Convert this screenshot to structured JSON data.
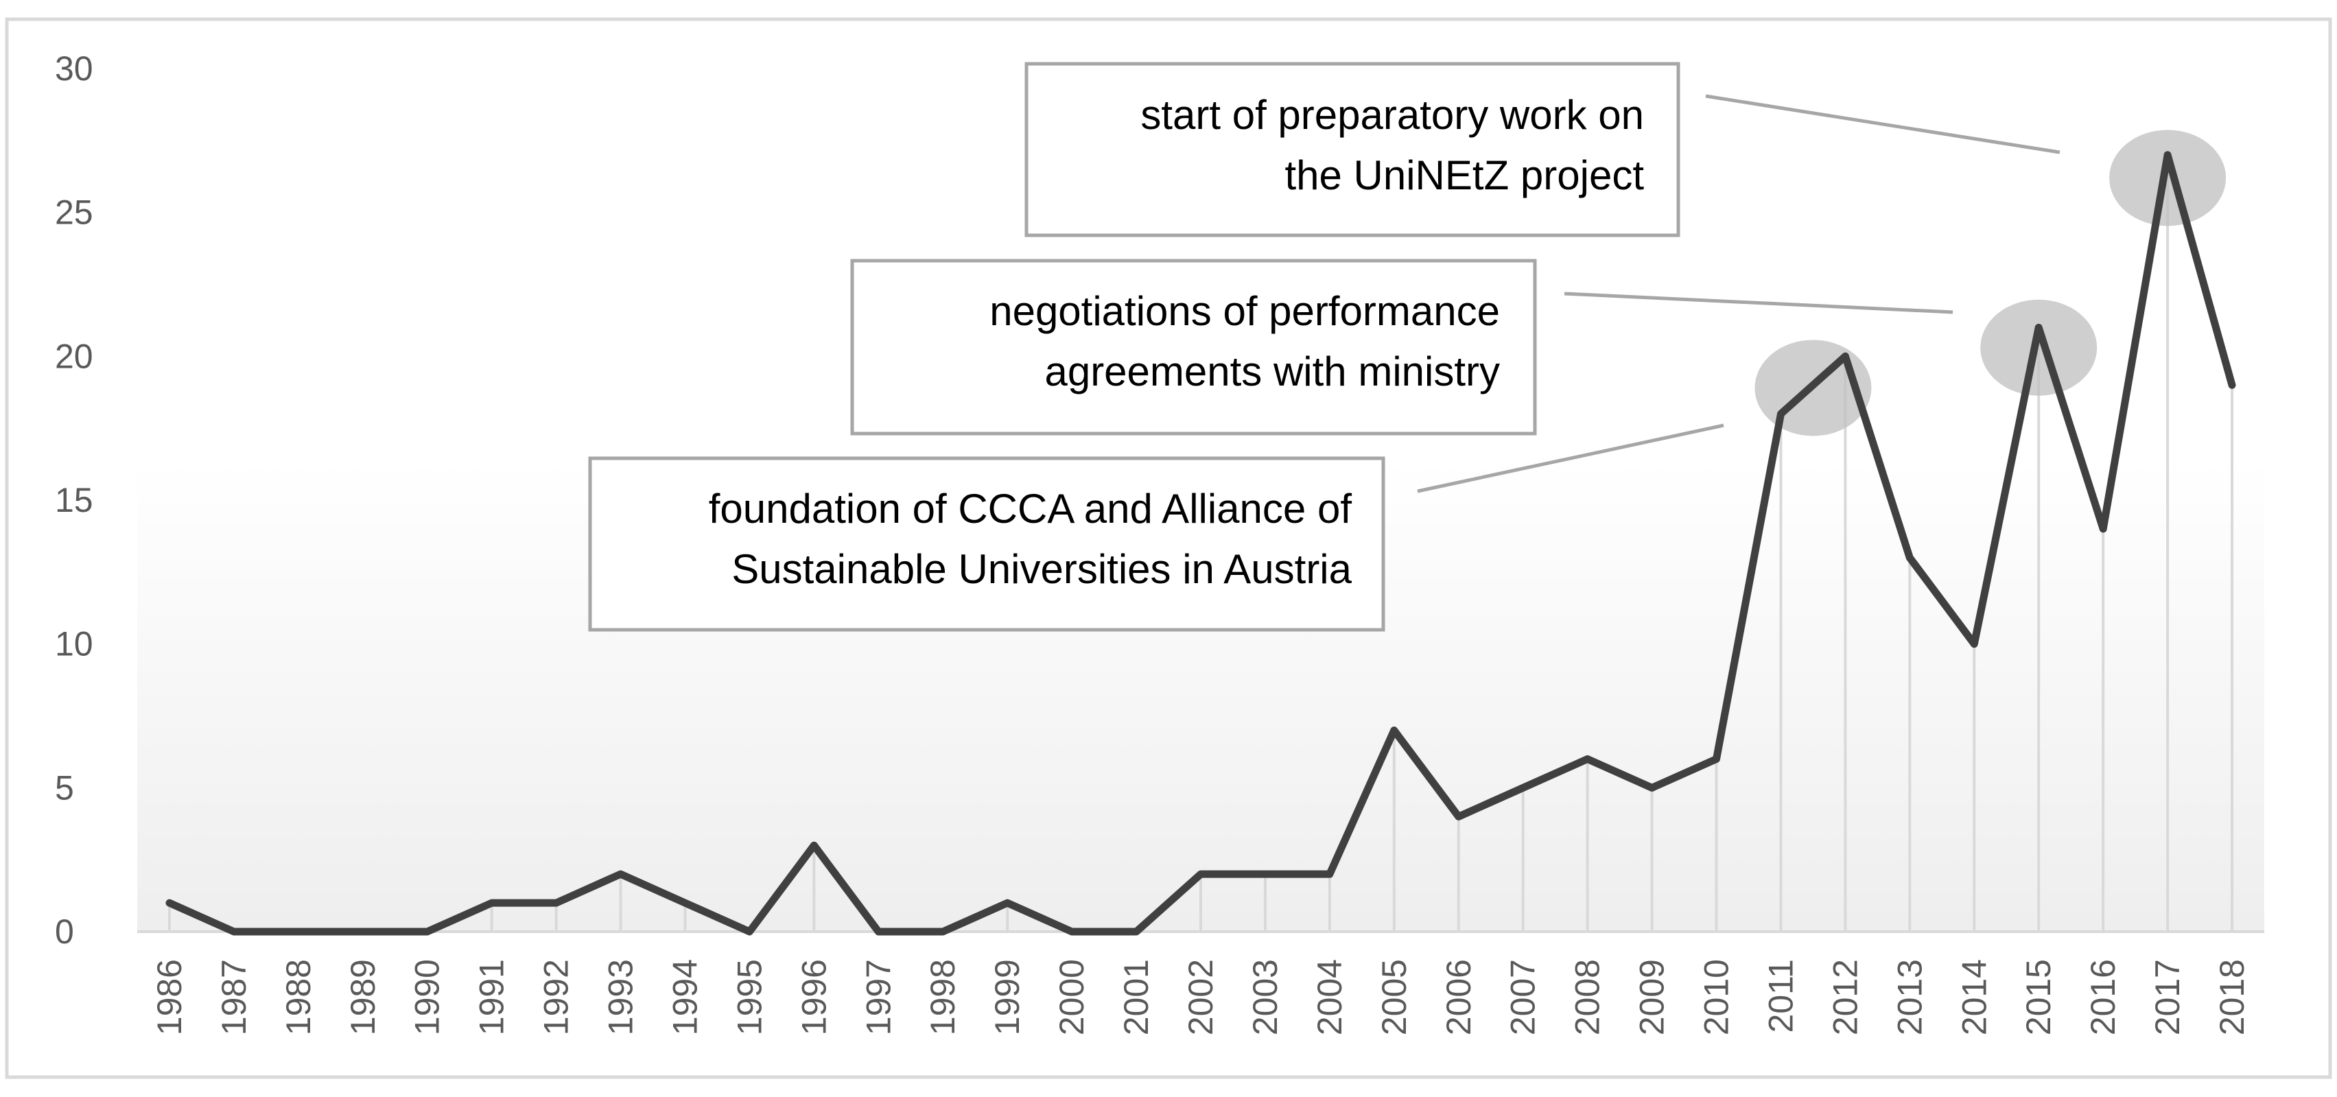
{
  "chart_data": {
    "type": "line",
    "title": "",
    "xlabel": "",
    "ylabel": "",
    "categories": [
      "1986",
      "1987",
      "1988",
      "1989",
      "1990",
      "1991",
      "1992",
      "1993",
      "1994",
      "1995",
      "1996",
      "1997",
      "1998",
      "1999",
      "2000",
      "2001",
      "2002",
      "2003",
      "2004",
      "2005",
      "2006",
      "2007",
      "2008",
      "2009",
      "2010",
      "2011",
      "2012",
      "2013",
      "2014",
      "2015",
      "2016",
      "2017",
      "2018"
    ],
    "values": [
      1,
      0,
      0,
      0,
      0,
      1,
      1,
      2,
      1,
      0,
      3,
      0,
      0,
      1,
      0,
      0,
      2,
      2,
      2,
      7,
      4,
      5,
      6,
      5,
      6,
      18,
      20,
      13,
      10,
      21,
      14,
      27,
      19
    ],
    "ylim": [
      0,
      30
    ],
    "yticks": [
      0,
      5,
      10,
      15,
      20,
      25,
      30
    ],
    "grid": false,
    "drop_lines": true,
    "colors": {
      "line": "#404040",
      "drop_line": "#d9d9d9",
      "highlight": "#bfbfbf",
      "box_border": "#a6a6a6",
      "leader": "#a6a6a6",
      "axis": "#d9d9d9"
    },
    "annotations": [
      {
        "lines": [
          "start of preparatory work on",
          "the UniNEtZ project"
        ],
        "highlight_x": "2017",
        "highlight_y": 26.2
      },
      {
        "lines": [
          "negotiations of performance",
          "agreements with ministry"
        ],
        "highlight_x": "2015",
        "highlight_y": 20.3
      },
      {
        "lines": [
          "foundation of CCCA and Alliance of",
          "Sustainable Universities in Austria"
        ],
        "highlight_x": "2011.5",
        "highlight_y": 18.9
      }
    ]
  }
}
